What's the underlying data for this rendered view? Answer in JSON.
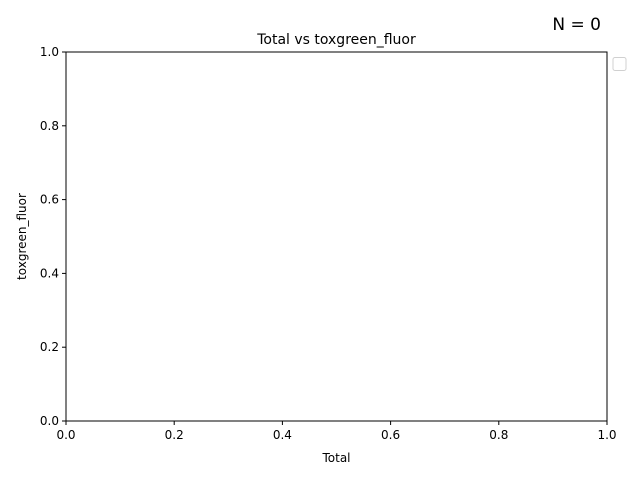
{
  "chart_data": {
    "type": "scatter",
    "title": "Total vs toxgreen_fluor",
    "xlabel": "Total",
    "ylabel": "toxgreen_fluor",
    "annotation": "N = 0",
    "xlim": [
      0.0,
      1.0
    ],
    "ylim": [
      0.0,
      1.0
    ],
    "xticks": [
      "0.0",
      "0.2",
      "0.4",
      "0.6",
      "0.8",
      "1.0"
    ],
    "yticks": [
      "0.0",
      "0.2",
      "0.4",
      "0.6",
      "0.8",
      "1.0"
    ],
    "grid": false,
    "legend": {
      "placement": "outside-top-right",
      "entries": []
    },
    "series": []
  }
}
